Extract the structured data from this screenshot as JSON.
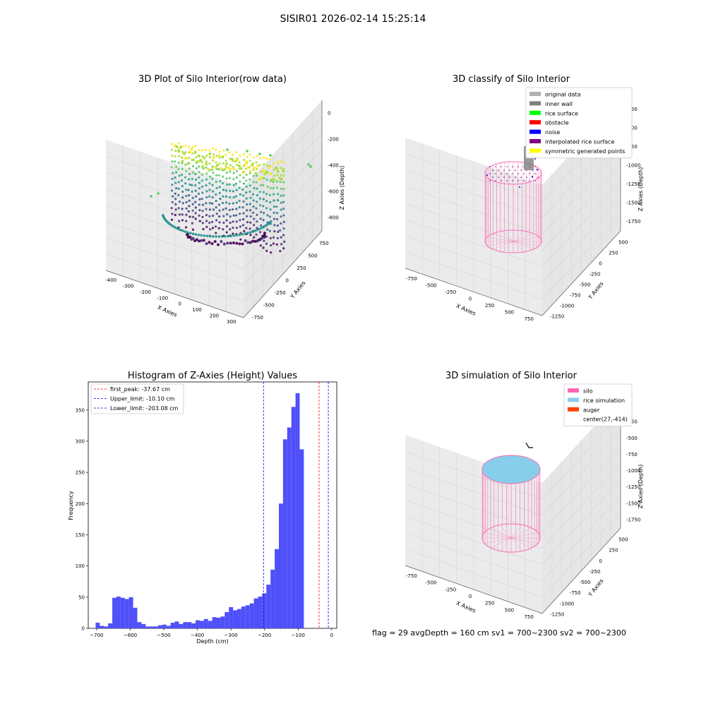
{
  "figure": {
    "suptitle": "SISIR01 2026-02-14 15:25:14",
    "status_line": "flag = 29  avgDepth = 160 cm  sv1 = 700~2300  sv2 = 700~2300"
  },
  "colors": {
    "hist_bar": "#5050fa",
    "first_peak": "#ff0000",
    "limits": "#0000ff",
    "silo": "#ff69b4",
    "rice": "#87ceeb",
    "auger": "#ff4500",
    "pane": "#f2f2f2",
    "grid": "#d4d4d4"
  },
  "chart_data": [
    {
      "type": "scatter",
      "title": "3D Plot of Silo Interior(row data)",
      "xlabel": "X Axies",
      "ylabel": "Y Axies",
      "zlabel": "Z Axies (Depth)",
      "x_ticks": [
        "-400",
        "-300",
        "-200",
        "-100",
        "0",
        "100",
        "200",
        "300"
      ],
      "y_ticks": [
        "-750",
        "-500",
        "-250",
        "0",
        "250",
        "500",
        "750"
      ],
      "z_ticks": [
        "0",
        "-200",
        "-400",
        "-600",
        "-800"
      ],
      "colormap": "viridis",
      "xlim": [
        -450,
        300
      ],
      "ylim": [
        -800,
        800
      ],
      "zlim": [
        -950,
        50
      ]
    },
    {
      "type": "scatter",
      "title": "3D classify of Silo Interior",
      "xlabel": "X Axies",
      "ylabel": "Y Axies",
      "zlabel": "Z Axies (Depth)",
      "x_ticks": [
        "-750",
        "-500",
        "-250",
        "0",
        "250",
        "500",
        "750"
      ],
      "y_ticks": [
        "-1250",
        "-1000",
        "-750",
        "-500",
        "-250",
        "0",
        "250",
        "500"
      ],
      "z_ticks": [
        "-250",
        "-500",
        "-750",
        "-1000",
        "-1250",
        "-1500",
        "-1750"
      ],
      "legend": [
        {
          "label": "original data",
          "color": "#b0b0b0"
        },
        {
          "label": "inner wall",
          "color": "#808080"
        },
        {
          "label": "rice surface",
          "color": "#00ff00"
        },
        {
          "label": "obstacle",
          "color": "#ff0000"
        },
        {
          "label": "noise",
          "color": "#0000ff"
        },
        {
          "label": "interpolated rice surface",
          "color": "#800080"
        },
        {
          "label": "symmetric generated points",
          "color": "#ffff00"
        }
      ],
      "legend_position": "top-right"
    },
    {
      "type": "bar",
      "title": "Histogram of Z-Axies (Height) Values",
      "xlabel": "Depth (cm)",
      "ylabel": "Frequency",
      "xlim": [
        -725,
        15
      ],
      "ylim": [
        0,
        395
      ],
      "x_ticks": [
        -700,
        -600,
        -500,
        -400,
        -300,
        -200,
        -100,
        0
      ],
      "y_ticks": [
        0,
        50,
        100,
        150,
        200,
        250,
        300,
        350
      ],
      "bin_start": -703,
      "bin_width": 12.4,
      "values": [
        9,
        4,
        3,
        8,
        49,
        51,
        49,
        47,
        50,
        33,
        10,
        7,
        3,
        3,
        3,
        5,
        6,
        4,
        9,
        11,
        7,
        10,
        10,
        8,
        13,
        12,
        15,
        12,
        18,
        17,
        19,
        26,
        34,
        29,
        31,
        35,
        37,
        40,
        48,
        51,
        56,
        70,
        94,
        127,
        200,
        303,
        322,
        355,
        377,
        287
      ],
      "vlines": [
        {
          "label": "first_peak: -37.67 cm",
          "x": -37.67,
          "color": "#ff0000"
        },
        {
          "label": "Upper_limit: -10.10 cm",
          "x": -10.1,
          "color": "#0000ff"
        },
        {
          "label": "Lower_limit: -203.08 cm",
          "x": -203.08,
          "color": "#0000ff"
        }
      ],
      "legend_position": "top-left"
    },
    {
      "type": "scatter",
      "title": "3D simulation of Silo Interior",
      "xlabel": "X Axies",
      "ylabel": "Y Axies",
      "zlabel": "Z Axies (Depth)",
      "x_ticks": [
        "-750",
        "-500",
        "-250",
        "0",
        "250",
        "500",
        "750"
      ],
      "y_ticks": [
        "-1250",
        "-1000",
        "-750",
        "-500",
        "-250",
        "0",
        "250",
        "500"
      ],
      "z_ticks": [
        "0",
        "-250",
        "-500",
        "-750",
        "-1000",
        "-1250",
        "-1500",
        "-1750"
      ],
      "legend": [
        {
          "label": "silo",
          "color": "#ff69b4"
        },
        {
          "label": "rice simulation",
          "color": "#87ceeb"
        },
        {
          "label": "auger",
          "color": "#ff4500"
        },
        {
          "label": "center(27,-414)",
          "color": ""
        }
      ],
      "legend_position": "top-right"
    }
  ]
}
